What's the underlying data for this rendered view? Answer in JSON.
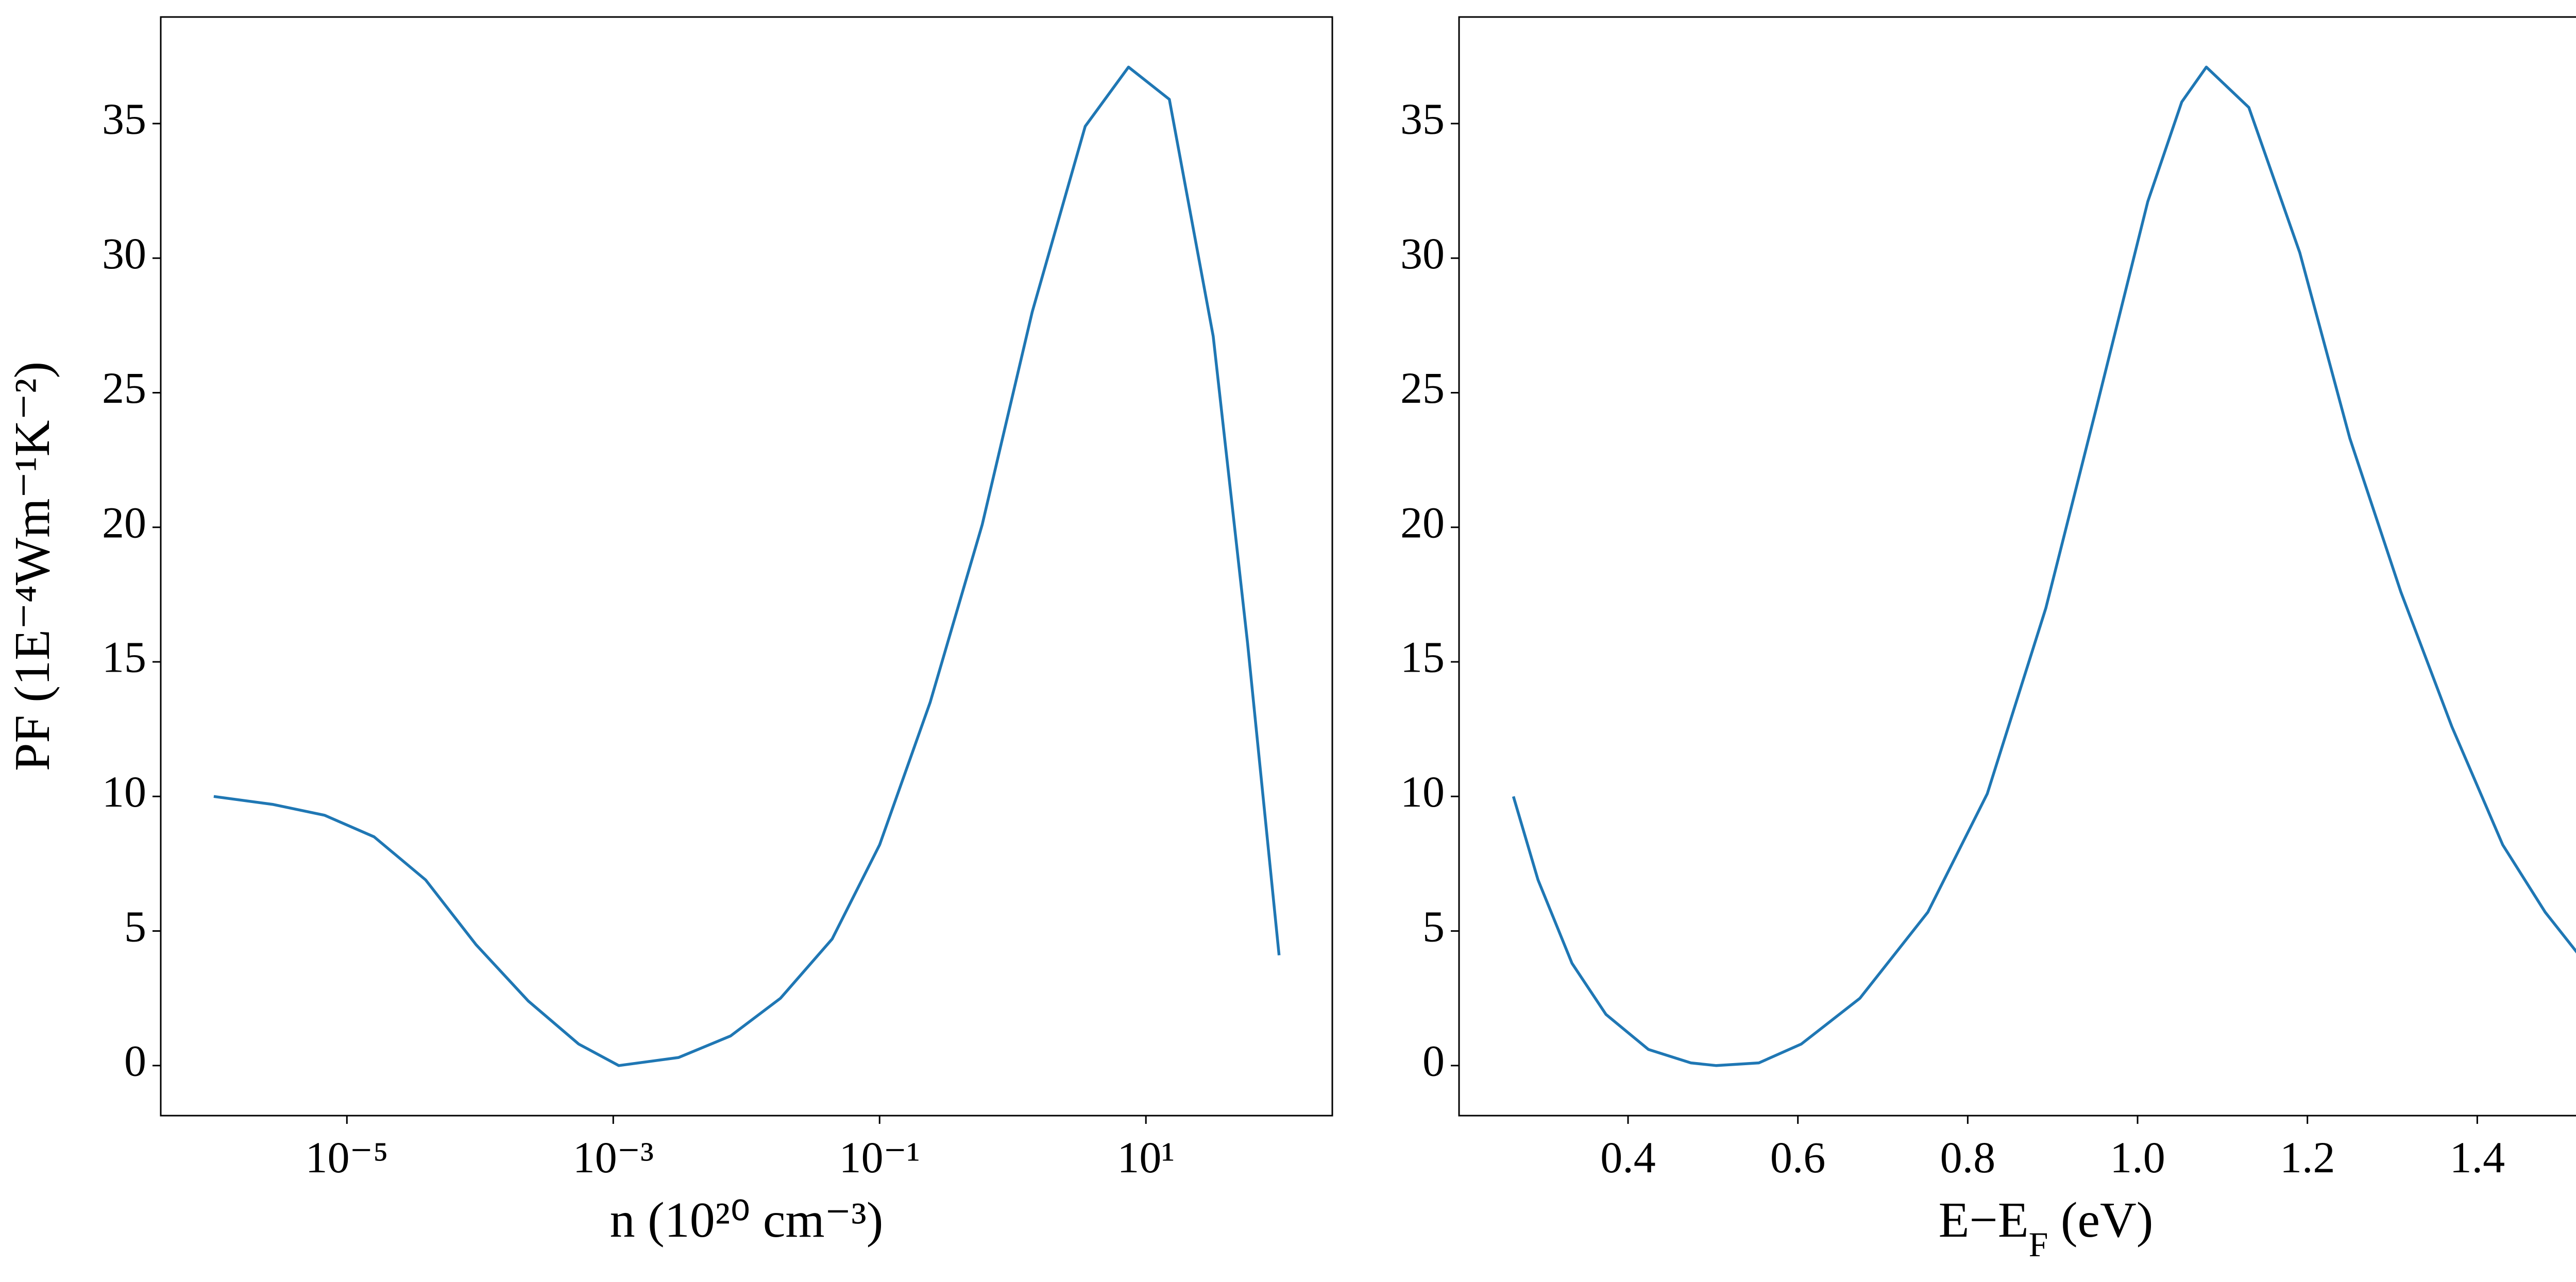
{
  "chart_data": [
    {
      "type": "line",
      "xscale": "log",
      "ylabel": "PF (1E⁻⁴Wm⁻¹K⁻²)",
      "xlabel": [
        "n (10²⁰ cm⁻³)"
      ],
      "x": [
        1e-06,
        2.8e-06,
        6.8e-06,
        1.6e-05,
        3.9e-05,
        9.3e-05,
        0.00023,
        0.00055,
        0.0011,
        0.0031,
        0.0076,
        0.018,
        0.044,
        0.1,
        0.24,
        0.59,
        1.4,
        3.5,
        7.4,
        15,
        32,
        58,
        100
      ],
      "series": [
        {
          "color": "#1f77b4",
          "values": [
            10.0,
            9.7,
            9.3,
            8.5,
            6.9,
            4.5,
            2.4,
            0.8,
            0,
            0.3,
            1.1,
            2.5,
            4.7,
            8.2,
            13.5,
            20.1,
            28.0,
            34.9,
            37.1,
            35.9,
            27.1,
            15.7,
            4.1
          ]
        }
      ],
      "xlim": [
        4e-07,
        251
      ],
      "xticks": [
        {
          "value": 1e-05,
          "label": "10⁻⁵"
        },
        {
          "value": 0.001,
          "label": "10⁻³"
        },
        {
          "value": 0.1,
          "label": "10⁻¹"
        },
        {
          "value": 10,
          "label": "10¹"
        }
      ],
      "ylim": [
        -1.86,
        38.96
      ],
      "yticks": [
        0,
        5,
        10,
        15,
        20,
        25,
        30,
        35
      ],
      "grid": false
    },
    {
      "type": "line",
      "xscale": "linear",
      "xlabel": [
        "E−E",
        "F",
        " (eV)"
      ],
      "x": [
        0.265,
        0.294,
        0.334,
        0.374,
        0.424,
        0.474,
        0.504,
        0.554,
        0.604,
        0.673,
        0.753,
        0.823,
        0.892,
        0.952,
        1.012,
        1.052,
        1.081,
        1.131,
        1.191,
        1.25,
        1.31,
        1.37,
        1.43,
        1.48,
        1.52
      ],
      "series": [
        {
          "color": "#1f77b4",
          "values": [
            10.0,
            6.9,
            3.8,
            1.9,
            0.6,
            0.1,
            0,
            0.1,
            0.8,
            2.5,
            5.7,
            10.1,
            17.0,
            24.5,
            32.1,
            35.8,
            37.1,
            35.6,
            30.2,
            23.3,
            17.6,
            12.6,
            8.2,
            5.7,
            4.1
          ]
        }
      ],
      "xlim": [
        0.201,
        1.583
      ],
      "xticks": [
        {
          "value": 0.4,
          "label": "0.4"
        },
        {
          "value": 0.6,
          "label": "0.6"
        },
        {
          "value": 0.8,
          "label": "0.8"
        },
        {
          "value": 1.0,
          "label": "1.0"
        },
        {
          "value": 1.2,
          "label": "1.2"
        },
        {
          "value": 1.4,
          "label": "1.4"
        }
      ],
      "ylim": [
        -1.86,
        38.96
      ],
      "yticks": [
        0,
        5,
        10,
        15,
        20,
        25,
        30,
        35
      ],
      "grid": false
    }
  ]
}
